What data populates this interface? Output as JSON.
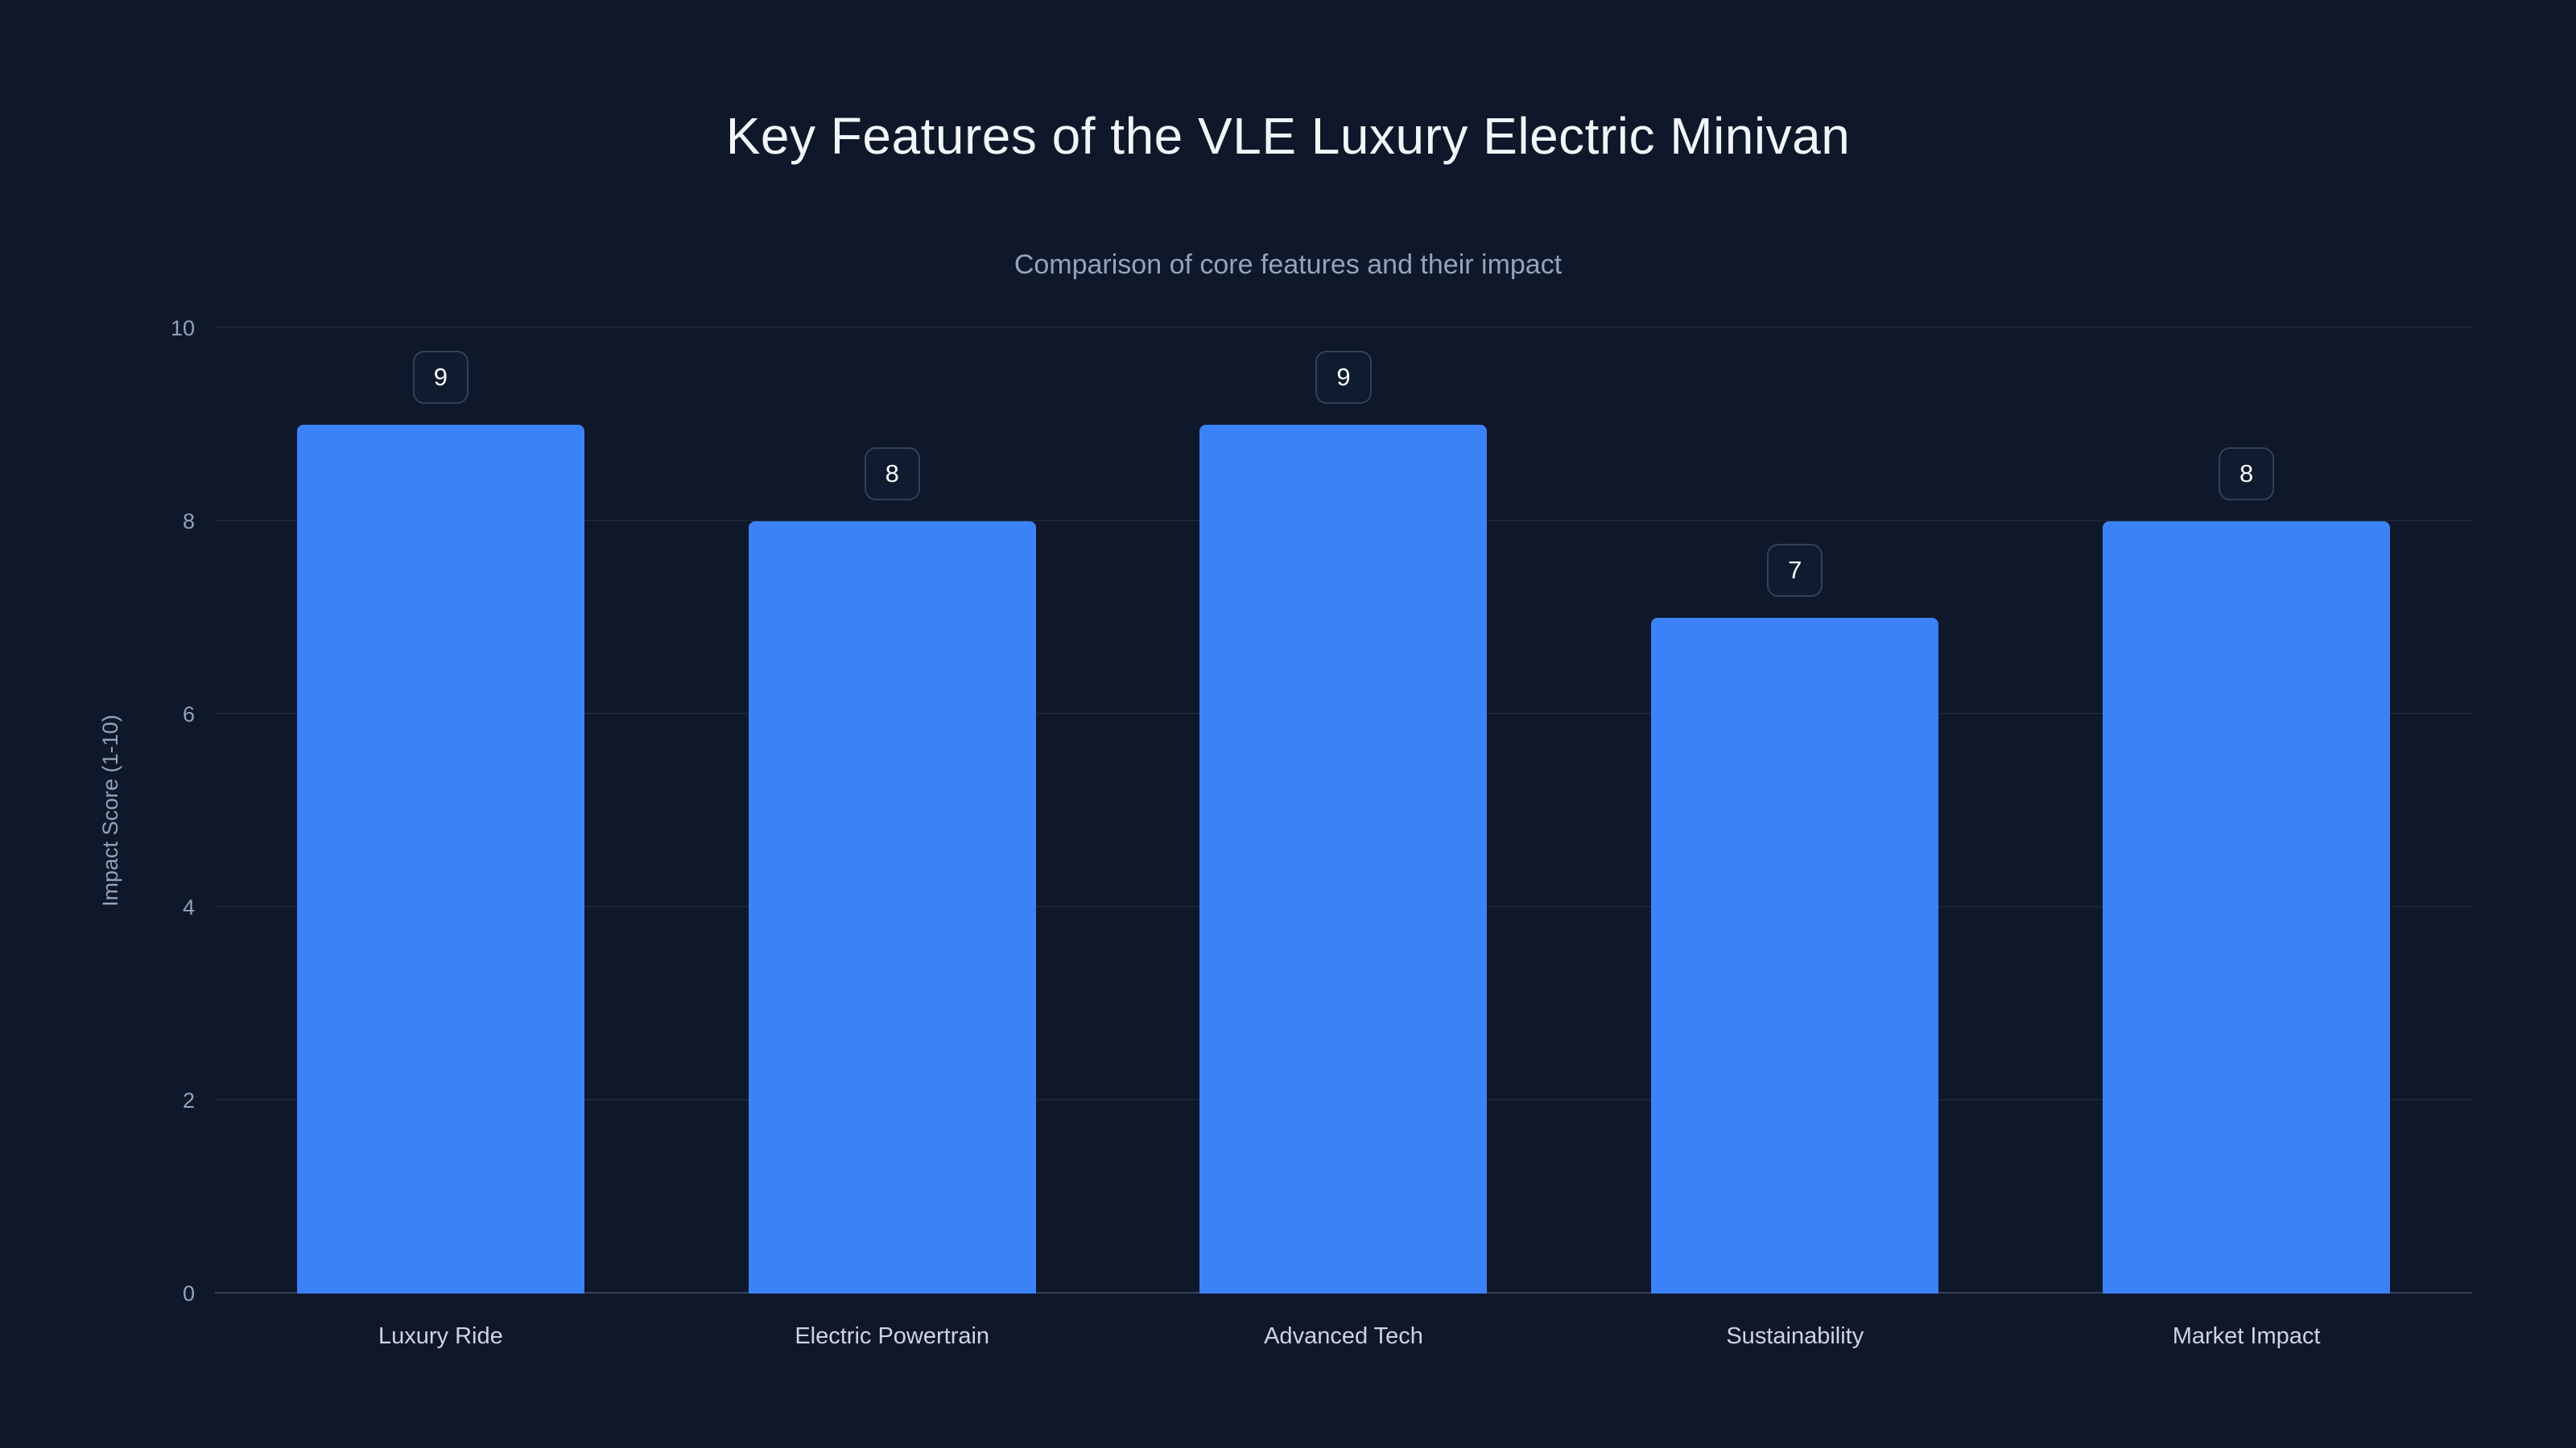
{
  "chart_data": {
    "type": "bar",
    "title": "Key Features of the VLE Luxury Electric Minivan",
    "subtitle": "Comparison of core features and their impact",
    "categories": [
      "Luxury Ride",
      "Electric Powertrain",
      "Advanced Tech",
      "Sustainability",
      "Market Impact"
    ],
    "values": [
      9,
      8,
      9,
      7,
      8
    ],
    "xlabel": "",
    "ylabel": "Impact Score (1-10)",
    "ylim": [
      0,
      10
    ],
    "yticks": [
      0,
      2,
      4,
      6,
      8,
      10
    ],
    "grid": true,
    "legend": "none",
    "value_labels": true
  },
  "colors": {
    "background": "#0f172a",
    "bar": "#3b82f6",
    "title_text": "#f1f5f9",
    "subtitle_text": "#94a3b8",
    "axis_text": "#94a3b8",
    "category_text": "#cbd5e1",
    "gridline": "rgba(148,163,184,0.10)",
    "badge_border": "#334155",
    "badge_background": "#0f1b2e",
    "badge_text": "#f8fafc"
  }
}
